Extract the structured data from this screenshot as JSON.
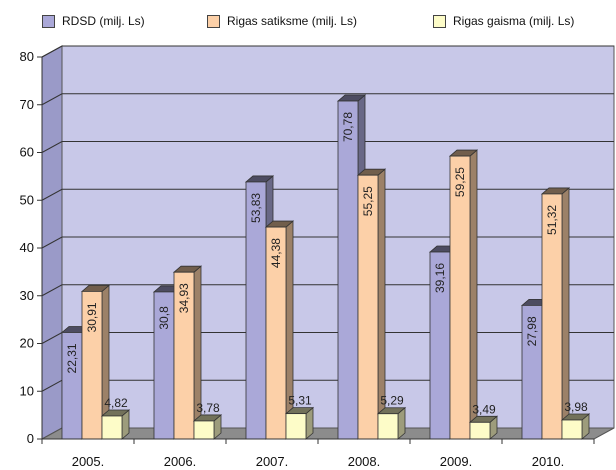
{
  "chart_data": {
    "type": "bar",
    "title": "",
    "xlabel": "",
    "ylabel": "",
    "categories": [
      "2005.",
      "2006.",
      "2007.",
      "2008.",
      "2009.",
      "2010."
    ],
    "series": [
      {
        "name": "RDSD (milj. Ls)",
        "color": "#aaa8d8",
        "values": [
          22.31,
          30.8,
          53.83,
          70.78,
          39.16,
          27.98
        ],
        "labels": [
          "22,31",
          "30,8",
          "53,83",
          "70,78",
          "39,16",
          "27,98"
        ]
      },
      {
        "name": "Rigas satiksme (milj. Ls)",
        "color": "#fcd0a8",
        "values": [
          30.91,
          34.93,
          44.38,
          55.25,
          59.25,
          51.32
        ],
        "labels": [
          "30,91",
          "34,93",
          "44,38",
          "55,25",
          "59,25",
          "51,32"
        ]
      },
      {
        "name": "Rigas gaisma (milj. Ls)",
        "color": "#fdfcc8",
        "values": [
          4.82,
          3.78,
          5.31,
          5.29,
          3.49,
          3.98
        ],
        "labels": [
          "4,82",
          "3,78",
          "5,31",
          "5,29",
          "3,49",
          "3,98"
        ]
      }
    ],
    "ylim": [
      0,
      80
    ],
    "yticks": [
      0,
      10,
      20,
      30,
      40,
      50,
      60,
      70,
      80
    ],
    "grid": true,
    "legend_position": "top",
    "style": "3d-bar",
    "wall_color": "#c8c8e8"
  }
}
